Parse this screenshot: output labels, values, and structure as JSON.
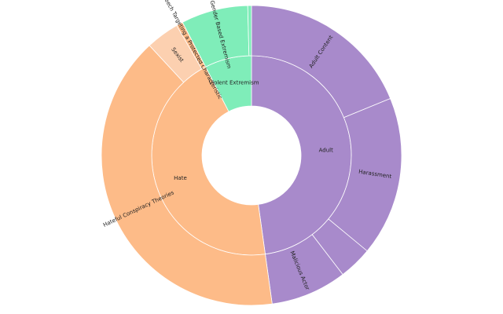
{
  "chart_data": {
    "type": "sunburst",
    "title": "",
    "colors": {
      "Adult": "#a88acb",
      "Hate": "#fdbb88",
      "Violent Extremism": "#7fedb9",
      "Sexist": "#fcd0b0",
      "Speech Targeting a Protected Characteristic": "#fdbb88",
      "Gender Based Extremism": "#7fedb9"
    },
    "inner": [
      {
        "label": "Adult",
        "value": 47.8,
        "color": "#a88acb"
      },
      {
        "label": "Hate",
        "value": 44.6,
        "color": "#fdbb88"
      },
      {
        "label": "Violent Extremism",
        "value": 7.6,
        "color": "#7fedb9"
      }
    ],
    "outer": [
      {
        "label": "Adult Content",
        "value": 18.8,
        "parent": "Adult",
        "color": "#a88acb"
      },
      {
        "label": "Harassment",
        "value": 17.2,
        "parent": "Adult",
        "color": "#a88acb"
      },
      {
        "label": "",
        "value": 3.6,
        "parent": "Adult",
        "color": "#a88acb"
      },
      {
        "label": "Malicious Actor",
        "value": 8.2,
        "parent": "Adult",
        "color": "#a88acb"
      },
      {
        "label": "Hateful Conspiracy Theories",
        "value": 40.3,
        "parent": "Hate",
        "color": "#fdbb88"
      },
      {
        "label": "Sexist",
        "value": 3.6,
        "parent": "Hate",
        "color": "#fcd0b0"
      },
      {
        "label": "Speech Targeting a Protected Characteristic",
        "value": 0.7,
        "parent": "Hate",
        "color": "#fdbb88"
      },
      {
        "label": "Gender Based Extremism",
        "value": 7.2,
        "parent": "Violent Extremism",
        "color": "#7fedb9"
      },
      {
        "label": "",
        "value": 0.4,
        "parent": "Violent Extremism",
        "color": "#7fedb9"
      }
    ]
  }
}
